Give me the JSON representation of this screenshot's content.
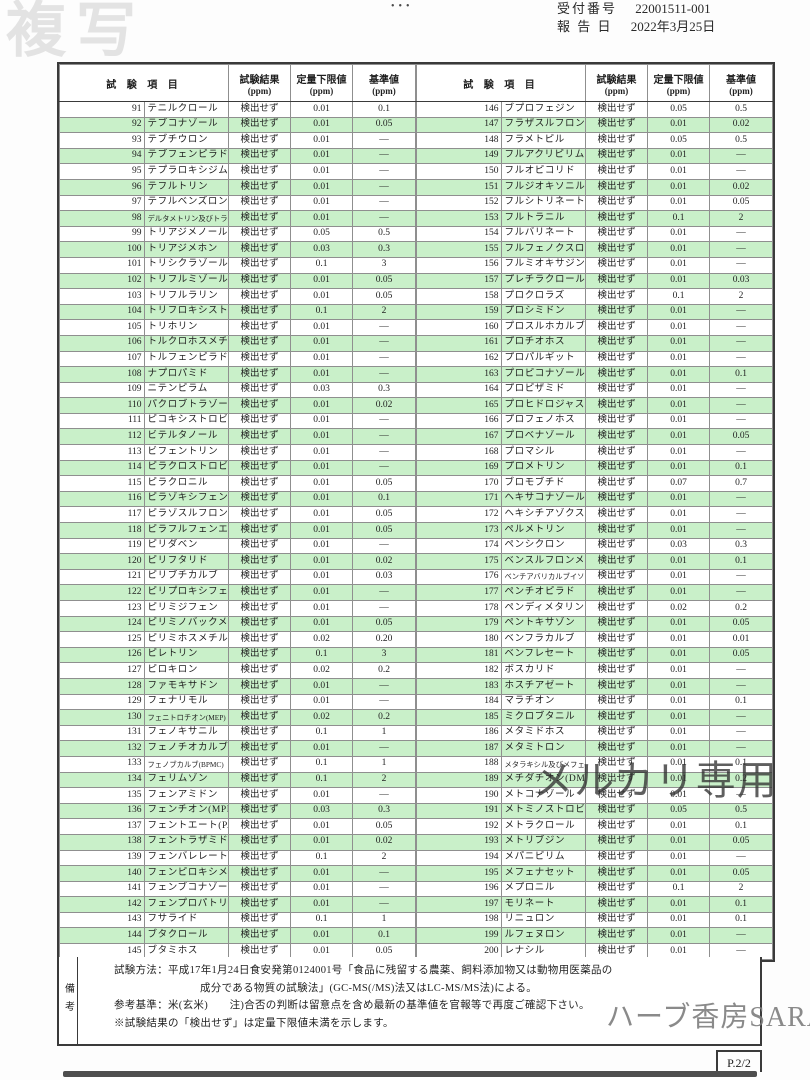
{
  "page": {
    "receipt_label": "受付番号",
    "receipt_number": "22001511-001",
    "report_label": "報 告 日",
    "report_date": "2022年3月25日",
    "dots": "•••",
    "page_number": "P.2/2"
  },
  "watermarks": {
    "copy": "複写",
    "mercari": "メルカリ専用",
    "shop": "ハーブ香房SARA"
  },
  "colors": {
    "row_green": "#c9f0c9",
    "border_dark": "#3a3a3a",
    "border_light": "#8f8f8f"
  },
  "table": {
    "header": {
      "item": "試 験 項 目",
      "result": "試験結果",
      "loq": "定量下限値",
      "standard": "基準値",
      "unit": "(ppm)"
    },
    "result_note": "検出せず",
    "left_rows": [
      [
        "91",
        "テニルクロール",
        "検出せず",
        "0.01",
        "0.1"
      ],
      [
        "92",
        "テブコナゾール",
        "検出せず",
        "0.01",
        "0.05"
      ],
      [
        "93",
        "テブチウロン",
        "検出せず",
        "0.01",
        "—"
      ],
      [
        "94",
        "テブフェンピラド",
        "検出せず",
        "0.01",
        "—"
      ],
      [
        "95",
        "テプラロキシジム",
        "検出せず",
        "0.01",
        "—"
      ],
      [
        "96",
        "テフルトリン",
        "検出せず",
        "0.01",
        "—"
      ],
      [
        "97",
        "テフルベンズロン",
        "検出せず",
        "0.01",
        "—"
      ],
      [
        "98",
        "デルタメトリン及びトラロメトリン",
        "検出せず",
        "0.01",
        "—"
      ],
      [
        "99",
        "トリアジメノール",
        "検出せず",
        "0.05",
        "0.5"
      ],
      [
        "100",
        "トリアジメホン",
        "検出せず",
        "0.03",
        "0.3"
      ],
      [
        "101",
        "トリシクラゾール",
        "検出せず",
        "0.1",
        "3"
      ],
      [
        "102",
        "トリフルミゾール",
        "検出せず",
        "0.01",
        "0.05"
      ],
      [
        "103",
        "トリフルラリン",
        "検出せず",
        "0.01",
        "0.05"
      ],
      [
        "104",
        "トリフロキシストロビン",
        "検出せず",
        "0.1",
        "2"
      ],
      [
        "105",
        "トリホリン",
        "検出せず",
        "0.01",
        "—"
      ],
      [
        "106",
        "トルクロホスメチル",
        "検出せず",
        "0.01",
        "—"
      ],
      [
        "107",
        "トルフェンピラド",
        "検出せず",
        "0.01",
        "—"
      ],
      [
        "108",
        "ナプロパミド",
        "検出せず",
        "0.01",
        "—"
      ],
      [
        "109",
        "ニテンピラム",
        "検出せず",
        "0.03",
        "0.3"
      ],
      [
        "110",
        "パクロブトラゾール",
        "検出せず",
        "0.01",
        "0.02"
      ],
      [
        "111",
        "ピコキシストロビン",
        "検出せず",
        "0.01",
        "—"
      ],
      [
        "112",
        "ビテルタノール",
        "検出せず",
        "0.01",
        "—"
      ],
      [
        "113",
        "ビフェントリン",
        "検出せず",
        "0.01",
        "—"
      ],
      [
        "114",
        "ピラクロストロビン",
        "検出せず",
        "0.01",
        "—"
      ],
      [
        "115",
        "ピラクロニル",
        "検出せず",
        "0.01",
        "0.05"
      ],
      [
        "116",
        "ピラゾキシフェン",
        "検出せず",
        "0.01",
        "0.1"
      ],
      [
        "117",
        "ピラゾスルフロンエチル",
        "検出せず",
        "0.01",
        "0.05"
      ],
      [
        "118",
        "ピラフルフェンエチル",
        "検出せず",
        "0.01",
        "0.05"
      ],
      [
        "119",
        "ピリダベン",
        "検出せず",
        "0.01",
        "—"
      ],
      [
        "120",
        "ピリフタリド",
        "検出せず",
        "0.01",
        "0.02"
      ],
      [
        "121",
        "ピリブチカルブ",
        "検出せず",
        "0.01",
        "0.03"
      ],
      [
        "122",
        "ピリプロキシフェン",
        "検出せず",
        "0.01",
        "—"
      ],
      [
        "123",
        "ピリミジフェン",
        "検出せず",
        "0.01",
        "—"
      ],
      [
        "124",
        "ピリミノバックメチル",
        "検出せず",
        "0.01",
        "0.05"
      ],
      [
        "125",
        "ピリミホスメチル",
        "検出せず",
        "0.02",
        "0.20"
      ],
      [
        "126",
        "ピレトリン",
        "検出せず",
        "0.1",
        "3"
      ],
      [
        "127",
        "ピロキロン",
        "検出せず",
        "0.02",
        "0.2"
      ],
      [
        "128",
        "ファモキサドン",
        "検出せず",
        "0.01",
        "—"
      ],
      [
        "129",
        "フェナリモル",
        "検出せず",
        "0.01",
        "—"
      ],
      [
        "130",
        "フェニトロチオン(MEP)",
        "検出せず",
        "0.02",
        "0.2"
      ],
      [
        "131",
        "フェノキサニル",
        "検出せず",
        "0.1",
        "1"
      ],
      [
        "132",
        "フェノチオカルブ",
        "検出せず",
        "0.01",
        "—"
      ],
      [
        "133",
        "フェノブカルブ(BPMC)",
        "検出せず",
        "0.1",
        "1"
      ],
      [
        "134",
        "フェリムゾン",
        "検出せず",
        "0.1",
        "2"
      ],
      [
        "135",
        "フェンアミドン",
        "検出せず",
        "0.01",
        "—"
      ],
      [
        "136",
        "フェンチオン(MPP)",
        "検出せず",
        "0.03",
        "0.3"
      ],
      [
        "137",
        "フェントエート(PAP)",
        "検出せず",
        "0.01",
        "0.05"
      ],
      [
        "138",
        "フェントラザミド",
        "検出せず",
        "0.01",
        "0.02"
      ],
      [
        "139",
        "フェンバレレート",
        "検出せず",
        "0.1",
        "2"
      ],
      [
        "140",
        "フェンピロキシメート",
        "検出せず",
        "0.01",
        "—"
      ],
      [
        "141",
        "フェンブコナゾール",
        "検出せず",
        "0.01",
        "—"
      ],
      [
        "142",
        "フェンプロパトリン",
        "検出せず",
        "0.01",
        "—"
      ],
      [
        "143",
        "フサライド",
        "検出せず",
        "0.1",
        "1"
      ],
      [
        "144",
        "ブタクロール",
        "検出せず",
        "0.01",
        "0.1"
      ],
      [
        "145",
        "ブタミホス",
        "検出せず",
        "0.01",
        "0.05"
      ]
    ],
    "right_rows": [
      [
        "146",
        "ブプロフェジン",
        "検出せず",
        "0.05",
        "0.5"
      ],
      [
        "147",
        "フラザスルフロン",
        "検出せず",
        "0.01",
        "0.02"
      ],
      [
        "148",
        "フラメトピル",
        "検出せず",
        "0.05",
        "0.5"
      ],
      [
        "149",
        "フルアクリピリム",
        "検出せず",
        "0.01",
        "—"
      ],
      [
        "150",
        "フルオピコリド",
        "検出せず",
        "0.01",
        "—"
      ],
      [
        "151",
        "フルジオキソニル",
        "検出せず",
        "0.01",
        "0.02"
      ],
      [
        "152",
        "フルシトリネート",
        "検出せず",
        "0.01",
        "0.05"
      ],
      [
        "153",
        "フルトラニル",
        "検出せず",
        "0.1",
        "2"
      ],
      [
        "154",
        "フルバリネート",
        "検出せず",
        "0.01",
        "—"
      ],
      [
        "155",
        "フルフェノクスロン",
        "検出せず",
        "0.01",
        "—"
      ],
      [
        "156",
        "フルミオキサジン",
        "検出せず",
        "0.01",
        "—"
      ],
      [
        "157",
        "プレチラクロール",
        "検出せず",
        "0.01",
        "0.03"
      ],
      [
        "158",
        "プロクロラズ",
        "検出せず",
        "0.1",
        "2"
      ],
      [
        "159",
        "プロシミドン",
        "検出せず",
        "0.01",
        "—"
      ],
      [
        "160",
        "プロスルホカルブ",
        "検出せず",
        "0.01",
        "—"
      ],
      [
        "161",
        "プロチオホス",
        "検出せず",
        "0.01",
        "—"
      ],
      [
        "162",
        "プロパルギット",
        "検出せず",
        "0.01",
        "—"
      ],
      [
        "163",
        "プロピコナゾール",
        "検出せず",
        "0.01",
        "0.1"
      ],
      [
        "164",
        "プロピザミド",
        "検出せず",
        "0.01",
        "—"
      ],
      [
        "165",
        "プロヒドロジャスモン",
        "検出せず",
        "0.01",
        "—"
      ],
      [
        "166",
        "プロフェノホス",
        "検出せず",
        "0.01",
        "—"
      ],
      [
        "167",
        "プロベナゾール",
        "検出せず",
        "0.01",
        "0.05"
      ],
      [
        "168",
        "プロマシル",
        "検出せず",
        "0.01",
        "—"
      ],
      [
        "169",
        "プロメトリン",
        "検出せず",
        "0.01",
        "0.1"
      ],
      [
        "170",
        "ブロモブチド",
        "検出せず",
        "0.07",
        "0.7"
      ],
      [
        "171",
        "ヘキサコナゾール",
        "検出せず",
        "0.01",
        "—"
      ],
      [
        "172",
        "ヘキシチアゾクス",
        "検出せず",
        "0.01",
        "—"
      ],
      [
        "173",
        "ペルメトリン",
        "検出せず",
        "0.01",
        "—"
      ],
      [
        "174",
        "ペンシクロン",
        "検出せず",
        "0.03",
        "0.3"
      ],
      [
        "175",
        "ベンスルフロンメチル",
        "検出せず",
        "0.01",
        "0.1"
      ],
      [
        "176",
        "ベンチアバリカルブイソプロピル",
        "検出せず",
        "0.01",
        "—"
      ],
      [
        "177",
        "ペンチオピラド",
        "検出せず",
        "0.01",
        "—"
      ],
      [
        "178",
        "ペンディメタリン",
        "検出せず",
        "0.02",
        "0.2"
      ],
      [
        "179",
        "ペントキサゾン",
        "検出せず",
        "0.01",
        "0.05"
      ],
      [
        "180",
        "ベンフラカルブ",
        "検出せず",
        "0.01",
        "0.01"
      ],
      [
        "181",
        "ベンフレセート",
        "検出せず",
        "0.01",
        "0.05"
      ],
      [
        "182",
        "ボスカリド",
        "検出せず",
        "0.01",
        "—"
      ],
      [
        "183",
        "ホスチアゼート",
        "検出せず",
        "0.01",
        "—"
      ],
      [
        "184",
        "マラチオン",
        "検出せず",
        "0.01",
        "0.1"
      ],
      [
        "185",
        "ミクロブタニル",
        "検出せず",
        "0.01",
        "—"
      ],
      [
        "186",
        "メタミドホス",
        "検出せず",
        "0.01",
        "—"
      ],
      [
        "187",
        "メタミトロン",
        "検出せず",
        "0.01",
        "—"
      ],
      [
        "188",
        "メタラキシル及びメフェノキサム",
        "検出せず",
        "0.01",
        "0.1"
      ],
      [
        "189",
        "メチダチオン(DMTP)",
        "検出せず",
        "0.01",
        "0.2"
      ],
      [
        "190",
        "メトコナゾール",
        "検出せず",
        "0.01",
        "—"
      ],
      [
        "191",
        "メトミノストロビン",
        "検出せず",
        "0.05",
        "0.5"
      ],
      [
        "192",
        "メトラクロール",
        "検出せず",
        "0.01",
        "0.1"
      ],
      [
        "193",
        "メトリブジン",
        "検出せず",
        "0.01",
        "0.05"
      ],
      [
        "194",
        "メパニピリム",
        "検出せず",
        "0.01",
        "—"
      ],
      [
        "195",
        "メフェナセット",
        "検出せず",
        "0.01",
        "0.05"
      ],
      [
        "196",
        "メプロニル",
        "検出せず",
        "0.1",
        "2"
      ],
      [
        "197",
        "モリネート",
        "検出せず",
        "0.01",
        "0.1"
      ],
      [
        "198",
        "リニュロン",
        "検出せず",
        "0.01",
        "0.1"
      ],
      [
        "199",
        "ルフェヌロン",
        "検出せず",
        "0.01",
        "—"
      ],
      [
        "200",
        "レナシル",
        "検出せず",
        "0.01",
        "—"
      ]
    ]
  },
  "remarks": {
    "label": "備考",
    "lines": [
      "試験方法：平成17年1月24日食安発第0124001号「食品に残留する農薬、飼料添加物又は動物用医薬品の",
      "成分である物質の試験法」(GC-MS(/MS)法又はLC-MS/MS法)による。",
      "参考基準：米(玄米)　　注)合否の判断は留意点を含め最新の基準値を官報等で再度ご確認下さい。",
      "※試験結果の「検出せず」は定量下限値未満を示します。"
    ]
  }
}
